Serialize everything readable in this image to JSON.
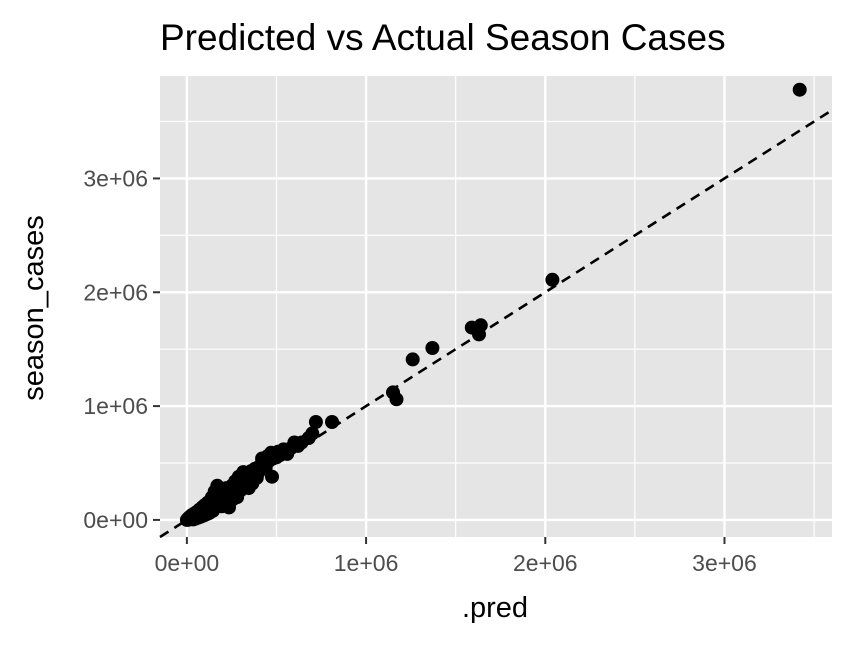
{
  "chart_data": {
    "type": "scatter",
    "title": "Predicted vs Actual Season Cases",
    "xlabel": ".pred",
    "ylabel": "season_cases",
    "xlim": [
      -150000,
      3600000
    ],
    "ylim": [
      -150000,
      3900000
    ],
    "x_ticks": [
      {
        "value": 0,
        "label": "0e+00"
      },
      {
        "value": 1000000,
        "label": "1e+06"
      },
      {
        "value": 2000000,
        "label": "2e+06"
      },
      {
        "value": 3000000,
        "label": "3e+06"
      }
    ],
    "y_ticks": [
      {
        "value": 0,
        "label": "0e+00"
      },
      {
        "value": 1000000,
        "label": "1e+06"
      },
      {
        "value": 2000000,
        "label": "2e+06"
      },
      {
        "value": 3000000,
        "label": "3e+06"
      }
    ],
    "grid": true,
    "reference_line": {
      "slope": 1,
      "intercept": 0,
      "style": "dashed"
    },
    "colors": {
      "panel": "#e5e5e5",
      "grid": "#ffffff",
      "points": "#000000",
      "tick_text": "#4d4d4d"
    },
    "series": [
      {
        "points": [
          [
            0,
            0
          ],
          [
            5000,
            10000
          ],
          [
            10000,
            2000
          ],
          [
            15000,
            25000
          ],
          [
            20000,
            8000
          ],
          [
            25000,
            40000
          ],
          [
            30000,
            15000
          ],
          [
            35000,
            5000
          ],
          [
            40000,
            55000
          ],
          [
            45000,
            30000
          ],
          [
            50000,
            12000
          ],
          [
            55000,
            70000
          ],
          [
            60000,
            45000
          ],
          [
            65000,
            20000
          ],
          [
            70000,
            90000
          ],
          [
            75000,
            50000
          ],
          [
            80000,
            30000
          ],
          [
            85000,
            110000
          ],
          [
            90000,
            60000
          ],
          [
            95000,
            40000
          ],
          [
            100000,
            130000
          ],
          [
            105000,
            75000
          ],
          [
            110000,
            50000
          ],
          [
            115000,
            150000
          ],
          [
            120000,
            90000
          ],
          [
            125000,
            60000
          ],
          [
            130000,
            170000
          ],
          [
            135000,
            100000
          ],
          [
            140000,
            200000
          ],
          [
            145000,
            80000
          ],
          [
            150000,
            130000
          ],
          [
            155000,
            250000
          ],
          [
            160000,
            110000
          ],
          [
            165000,
            180000
          ],
          [
            170000,
            300000
          ],
          [
            175000,
            140000
          ],
          [
            180000,
            220000
          ],
          [
            185000,
            160000
          ],
          [
            190000,
            260000
          ],
          [
            195000,
            120000
          ],
          [
            200000,
            200000
          ],
          [
            210000,
            240000
          ],
          [
            215000,
            140000
          ],
          [
            220000,
            280000
          ],
          [
            230000,
            200000
          ],
          [
            235000,
            110000
          ],
          [
            240000,
            260000
          ],
          [
            250000,
            300000
          ],
          [
            255000,
            180000
          ],
          [
            260000,
            230000
          ],
          [
            270000,
            340000
          ],
          [
            275000,
            250000
          ],
          [
            280000,
            200000
          ],
          [
            290000,
            380000
          ],
          [
            295000,
            300000
          ],
          [
            300000,
            260000
          ],
          [
            310000,
            360000
          ],
          [
            315000,
            420000
          ],
          [
            320000,
            300000
          ],
          [
            330000,
            340000
          ],
          [
            340000,
            410000
          ],
          [
            345000,
            280000
          ],
          [
            350000,
            380000
          ],
          [
            360000,
            430000
          ],
          [
            365000,
            320000
          ],
          [
            375000,
            400000
          ],
          [
            380000,
            450000
          ],
          [
            390000,
            370000
          ],
          [
            400000,
            420000
          ],
          [
            410000,
            480000
          ],
          [
            420000,
            540000
          ],
          [
            430000,
            500000
          ],
          [
            440000,
            460000
          ],
          [
            450000,
            560000
          ],
          [
            460000,
            520000
          ],
          [
            470000,
            590000
          ],
          [
            475000,
            380000
          ],
          [
            480000,
            540000
          ],
          [
            500000,
            550000
          ],
          [
            510000,
            600000
          ],
          [
            520000,
            570000
          ],
          [
            540000,
            620000
          ],
          [
            560000,
            580000
          ],
          [
            580000,
            630000
          ],
          [
            600000,
            680000
          ],
          [
            620000,
            650000
          ],
          [
            640000,
            680000
          ],
          [
            680000,
            720000
          ],
          [
            700000,
            760000
          ],
          [
            720000,
            860000
          ],
          [
            810000,
            860000
          ],
          [
            1150000,
            1120000
          ],
          [
            1170000,
            1060000
          ],
          [
            1260000,
            1410000
          ],
          [
            1370000,
            1510000
          ],
          [
            1590000,
            1690000
          ],
          [
            1630000,
            1630000
          ],
          [
            1640000,
            1710000
          ],
          [
            2040000,
            2110000
          ],
          [
            3420000,
            3780000
          ]
        ]
      }
    ]
  }
}
